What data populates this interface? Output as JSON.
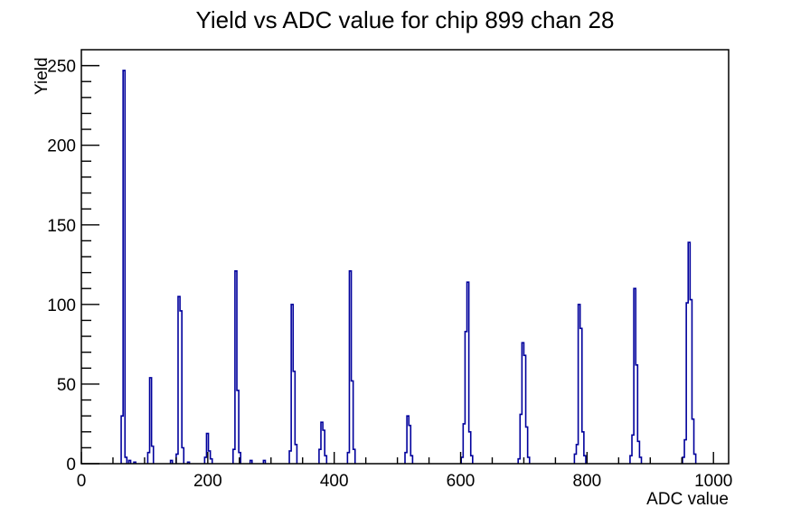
{
  "window": {
    "background_color": "#ffffff"
  },
  "chart_data": {
    "type": "bar",
    "title": "Yield vs ADC value for chip 899 chan 28",
    "xlabel": "ADC value",
    "ylabel": "Yield",
    "xlim": [
      0,
      1024
    ],
    "ylim": [
      0,
      260
    ],
    "x_major_ticks": [
      0,
      200,
      400,
      600,
      800,
      1000
    ],
    "x_minor_step": 50,
    "y_major_ticks": [
      0,
      50,
      100,
      150,
      200,
      250
    ],
    "y_minor_step": 10,
    "grid": false,
    "legend": "none",
    "line_color": "#00009c",
    "axis_color": "#000000",
    "bin_width_adc": 3,
    "main_peaks": [
      {
        "adc": 68,
        "yield": 247
      },
      {
        "adc": 110,
        "yield": 54
      },
      {
        "adc": 154,
        "yield": 105
      },
      {
        "adc": 199,
        "yield": 19
      },
      {
        "adc": 245,
        "yield": 121
      },
      {
        "adc": 334,
        "yield": 100
      },
      {
        "adc": 380,
        "yield": 26
      },
      {
        "adc": 426,
        "yield": 121
      },
      {
        "adc": 516,
        "yield": 30
      },
      {
        "adc": 610,
        "yield": 114
      },
      {
        "adc": 698,
        "yield": 76
      },
      {
        "adc": 787,
        "yield": 100
      },
      {
        "adc": 876,
        "yield": 110
      },
      {
        "adc": 960,
        "yield": 139
      }
    ],
    "clusters": [
      {
        "x0": 63,
        "heights": [
          30,
          247,
          4
        ]
      },
      {
        "x0": 75,
        "heights": [
          2
        ]
      },
      {
        "x0": 83,
        "heights": [
          1
        ]
      },
      {
        "x0": 105,
        "heights": [
          7,
          54,
          11
        ]
      },
      {
        "x0": 141,
        "heights": [
          2
        ]
      },
      {
        "x0": 150,
        "heights": [
          6,
          105,
          96,
          10
        ]
      },
      {
        "x0": 168,
        "heights": [
          1
        ]
      },
      {
        "x0": 195,
        "heights": [
          4,
          19,
          8,
          3
        ]
      },
      {
        "x0": 240,
        "heights": [
          9,
          121,
          46,
          7
        ]
      },
      {
        "x0": 267,
        "heights": [
          2
        ]
      },
      {
        "x0": 288,
        "heights": [
          2
        ]
      },
      {
        "x0": 329,
        "heights": [
          8,
          100,
          58,
          12
        ]
      },
      {
        "x0": 376,
        "heights": [
          9,
          26,
          21,
          5
        ]
      },
      {
        "x0": 421,
        "heights": [
          7,
          121,
          52,
          9
        ]
      },
      {
        "x0": 512,
        "heights": [
          7,
          30,
          24,
          5
        ]
      },
      {
        "x0": 601,
        "heights": [
          4,
          25,
          83,
          114,
          20,
          5
        ]
      },
      {
        "x0": 691,
        "heights": [
          3,
          31,
          76,
          68,
          23,
          4
        ]
      },
      {
        "x0": 780,
        "heights": [
          6,
          12,
          100,
          85,
          20,
          5
        ]
      },
      {
        "x0": 868,
        "heights": [
          5,
          18,
          110,
          62,
          14,
          4
        ]
      },
      {
        "x0": 951,
        "heights": [
          4,
          15,
          101,
          139,
          103,
          28,
          6
        ]
      }
    ]
  }
}
